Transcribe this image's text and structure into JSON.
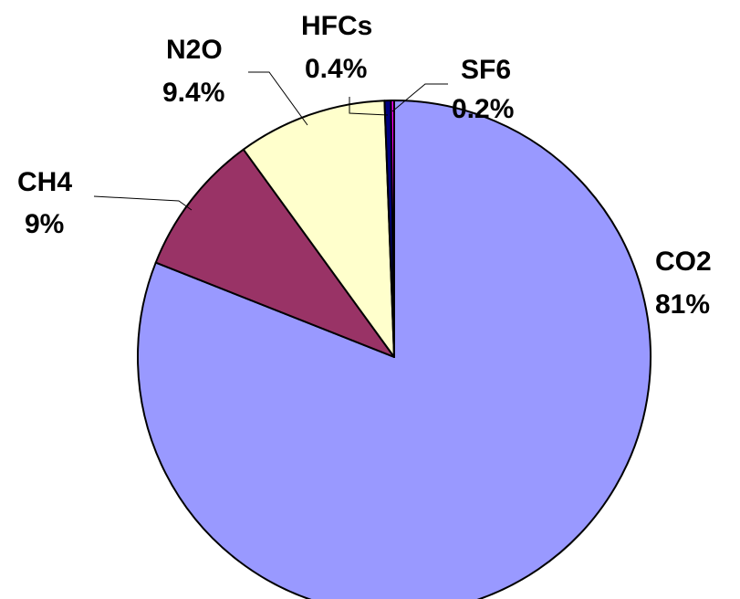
{
  "chart_data": {
    "type": "pie",
    "start_angle_deg": 0,
    "direction": "clockwise",
    "slices": [
      {
        "name": "CO2",
        "value": 81,
        "value_label": "81%",
        "color": "#9999FF"
      },
      {
        "name": "CH4",
        "value": 9,
        "value_label": "9%",
        "color": "#993366"
      },
      {
        "name": "N2O",
        "value": 9.4,
        "value_label": "9.4%",
        "color": "#FFFFCC"
      },
      {
        "name": "HFCs",
        "value": 0.4,
        "value_label": "0.4%",
        "color": "#000080"
      },
      {
        "name": "SF6",
        "value": 0.2,
        "value_label": "0.2%",
        "color": "#FF00FF"
      }
    ]
  }
}
